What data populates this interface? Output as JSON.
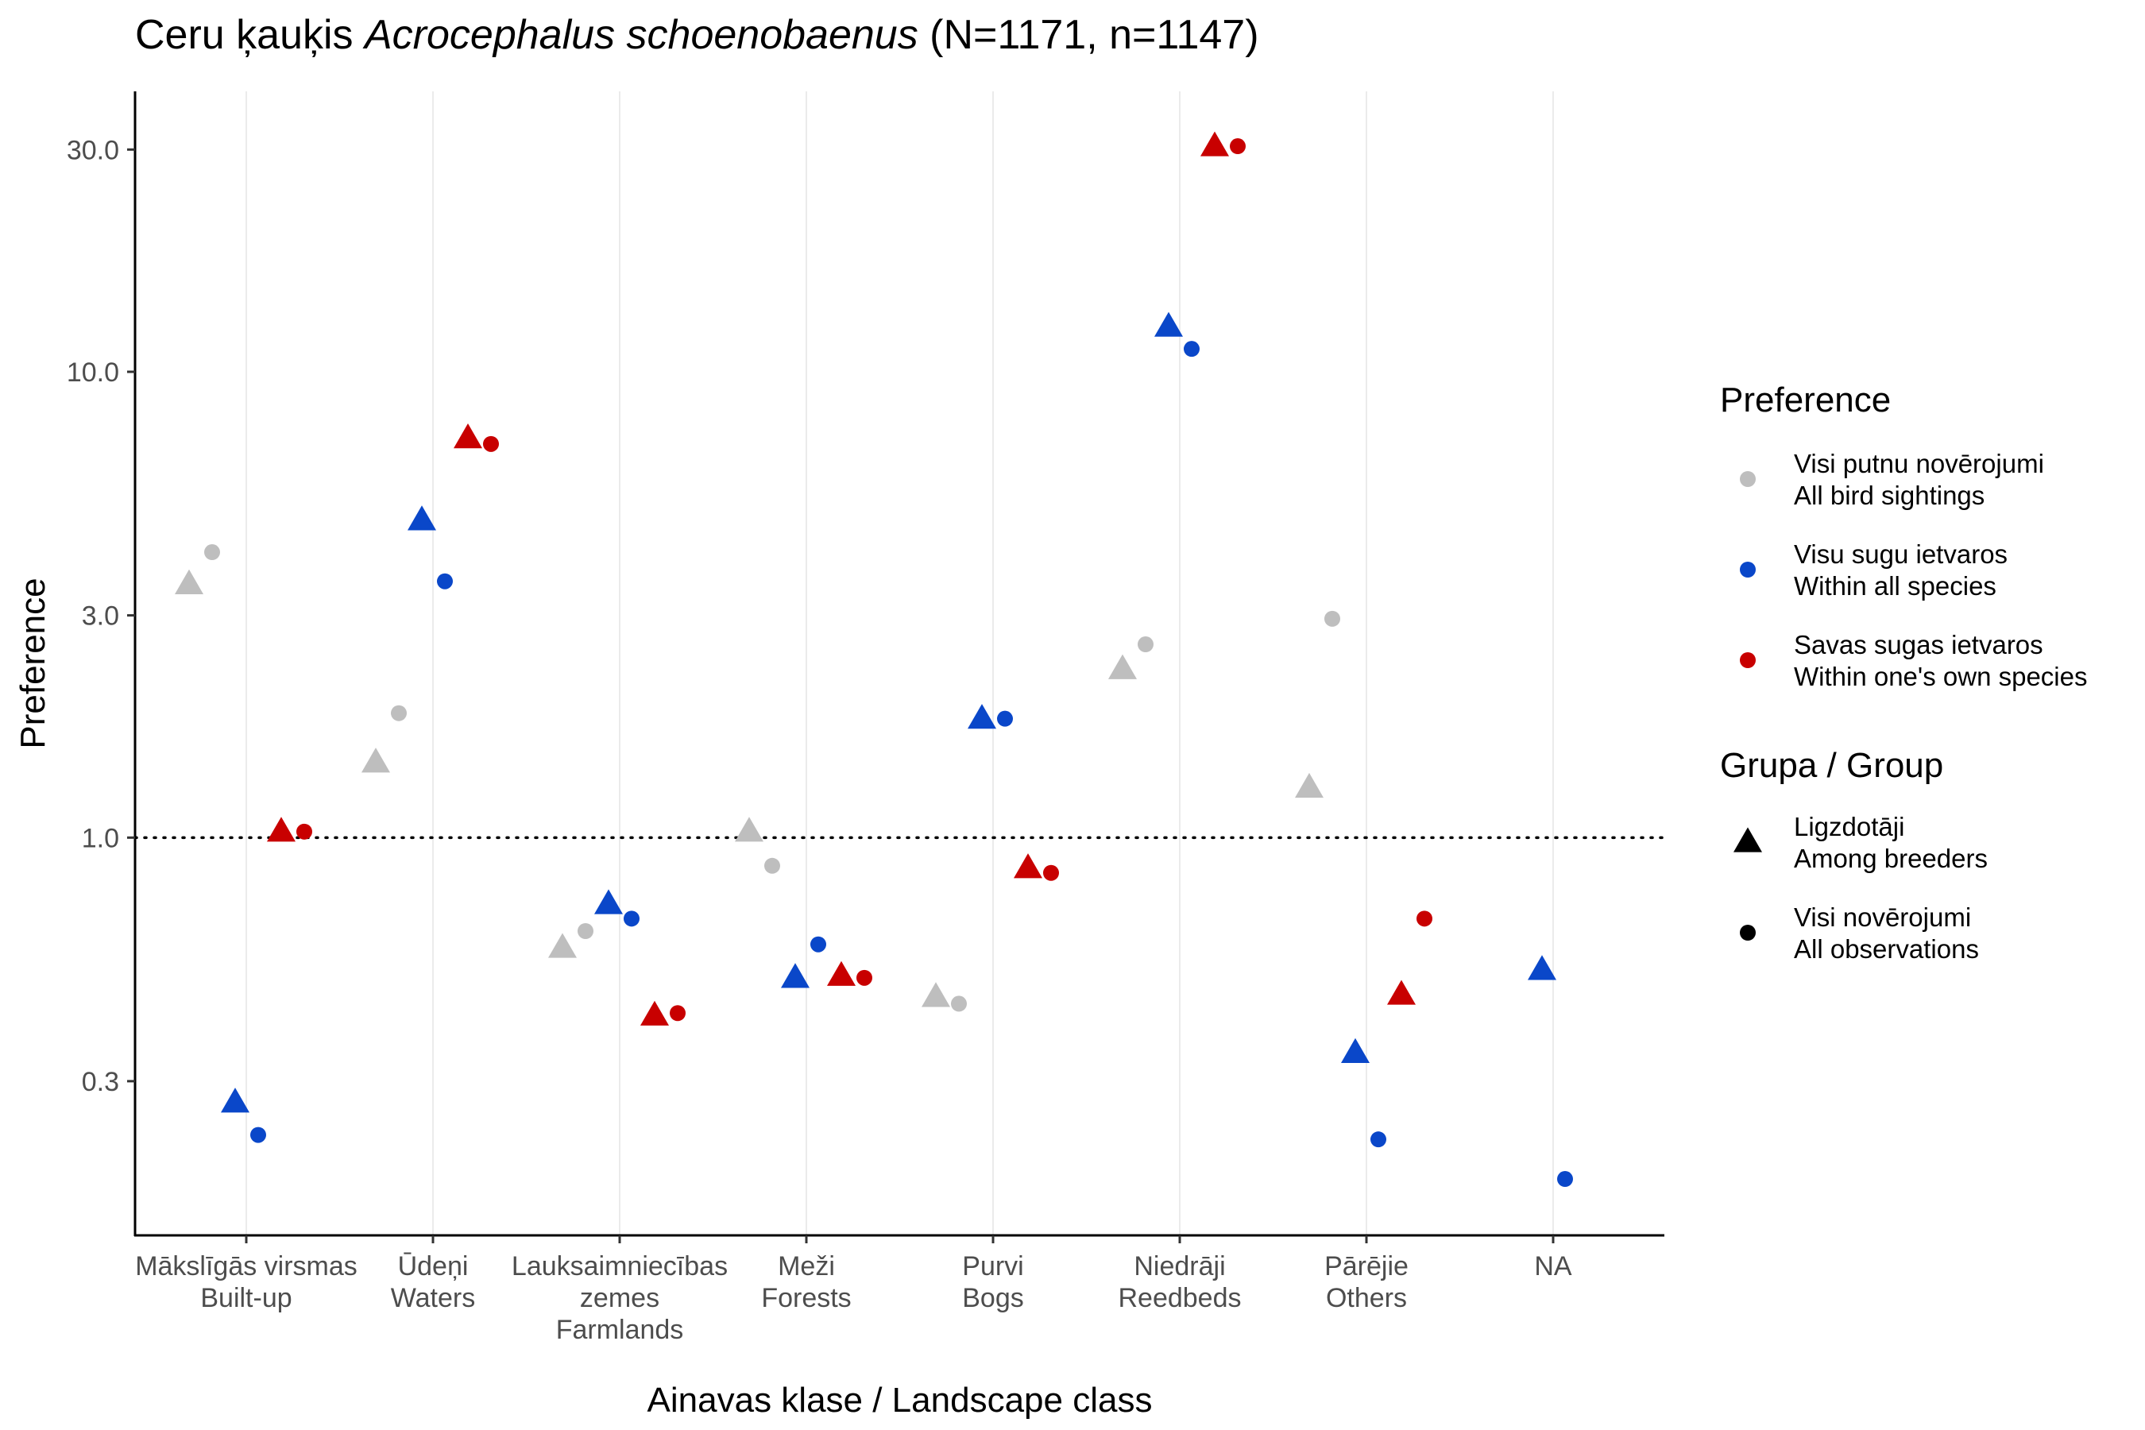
{
  "chart_data": {
    "type": "scatter",
    "title": {
      "prefix": "Ceru ķauķis ",
      "species": "Acrocephalus schoenobaenus",
      "suffix": " (N=1171, n=1147)"
    },
    "xlabel": "Ainavas klase / Landscape class",
    "ylabel": "Preference",
    "y_scale": "log10",
    "ylim": [
      0.14,
      40
    ],
    "y_ticks": [
      {
        "value": 0.3,
        "label": "0.3"
      },
      {
        "value": 1.0,
        "label": "1.0"
      },
      {
        "value": 3.0,
        "label": "3.0"
      },
      {
        "value": 10.0,
        "label": "10.0"
      },
      {
        "value": 30.0,
        "label": "30.0"
      }
    ],
    "reference_line": {
      "value": 1.0,
      "style": "dotted"
    },
    "categories": [
      {
        "id": "builtup",
        "lines": [
          "Mākslīgās virsmas",
          "Built-up"
        ]
      },
      {
        "id": "waters",
        "lines": [
          "Ūdeņi",
          "Waters"
        ]
      },
      {
        "id": "farmlands",
        "lines": [
          "Lauksaimniecības",
          "zemes",
          "Farmlands"
        ]
      },
      {
        "id": "forests",
        "lines": [
          "Meži",
          "Forests"
        ]
      },
      {
        "id": "bogs",
        "lines": [
          "Purvi",
          "Bogs"
        ]
      },
      {
        "id": "reedbeds",
        "lines": [
          "Niedrāji",
          "Reedbeds"
        ]
      },
      {
        "id": "others",
        "lines": [
          "Pārējie",
          "Others"
        ]
      },
      {
        "id": "na",
        "lines": [
          "NA"
        ]
      }
    ],
    "preference_series": [
      {
        "id": "all_bird",
        "color": "#bebebe",
        "label_lines": [
          "Visi putnu novērojumi",
          "All bird sightings"
        ]
      },
      {
        "id": "all_species",
        "color": "#0a47c9",
        "label_lines": [
          "Visu sugu ietvaros",
          "Within all species"
        ]
      },
      {
        "id": "own_species",
        "color": "#c80000",
        "label_lines": [
          "Savas sugas ietvaros",
          "Within one's own species"
        ]
      }
    ],
    "group_series": [
      {
        "id": "breeders",
        "shape": "triangle",
        "label_lines": [
          "Ligzdotāji",
          "Among breeders"
        ]
      },
      {
        "id": "all_obs",
        "shape": "circle",
        "label_lines": [
          "Visi novērojumi",
          "All observations"
        ]
      }
    ],
    "legend_titles": {
      "preference": "Preference",
      "group": "Grupa / Group"
    },
    "legend_position": "right",
    "values": {
      "builtup": {
        "all_bird": {
          "breeders": 3.5,
          "all_obs": 4.1
        },
        "all_species": {
          "breeders": 0.27,
          "all_obs": 0.23
        },
        "own_species": {
          "breeders": 1.03,
          "all_obs": 1.03
        }
      },
      "waters": {
        "all_bird": {
          "breeders": 1.45,
          "all_obs": 1.85
        },
        "all_species": {
          "breeders": 4.8,
          "all_obs": 3.55
        },
        "own_species": {
          "breeders": 7.2,
          "all_obs": 7.0
        }
      },
      "farmlands": {
        "all_bird": {
          "breeders": 0.58,
          "all_obs": 0.63
        },
        "all_species": {
          "breeders": 0.72,
          "all_obs": 0.67
        },
        "own_species": {
          "breeders": 0.415,
          "all_obs": 0.42
        }
      },
      "forests": {
        "all_bird": {
          "breeders": 1.03,
          "all_obs": 0.87
        },
        "all_species": {
          "breeders": 0.5,
          "all_obs": 0.59
        },
        "own_species": {
          "breeders": 0.505,
          "all_obs": 0.5
        }
      },
      "bogs": {
        "all_bird": {
          "breeders": 0.455,
          "all_obs": 0.44
        },
        "all_species": {
          "breeders": 1.8,
          "all_obs": 1.8
        },
        "own_species": {
          "breeders": 0.86,
          "all_obs": 0.84
        }
      },
      "reedbeds": {
        "all_bird": {
          "breeders": 2.3,
          "all_obs": 2.6
        },
        "all_species": {
          "breeders": 12.5,
          "all_obs": 11.2
        },
        "own_species": {
          "breeders": 30.5,
          "all_obs": 30.5
        }
      },
      "others": {
        "all_bird": {
          "breeders": 1.28,
          "all_obs": 2.95
        },
        "all_species": {
          "breeders": 0.345,
          "all_obs": 0.225
        },
        "own_species": {
          "breeders": 0.46,
          "all_obs": 0.67
        }
      },
      "na": {
        "all_bird": {
          "breeders": null,
          "all_obs": null
        },
        "all_species": {
          "breeders": 0.52,
          "all_obs": 0.185
        },
        "own_species": {
          "breeders": null,
          "all_obs": null
        }
      }
    }
  }
}
